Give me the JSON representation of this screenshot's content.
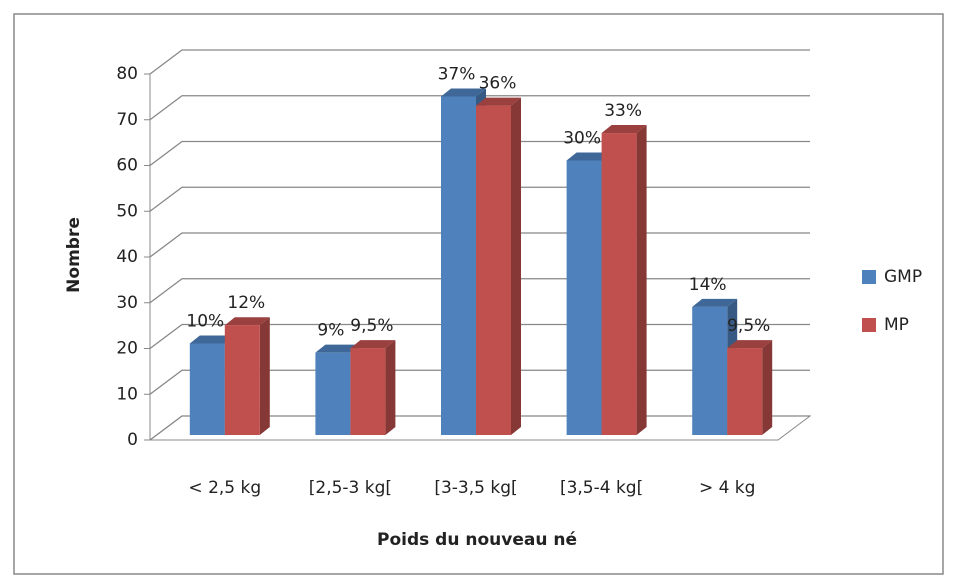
{
  "chart_data": {
    "type": "bar3d",
    "y_label": "Nombre",
    "x_label": "Poids du nouveau né",
    "categories": [
      "< 2,5 kg",
      "[2,5-3 kg[",
      "[3-3,5 kg[",
      "[3,5-4 kg[",
      "> 4 kg"
    ],
    "series": [
      {
        "name": "GMP",
        "color": "#4f81bd",
        "values": [
          20,
          18,
          74,
          60,
          28
        ],
        "value_labels": [
          "10%",
          "9%",
          "37%",
          "30%",
          "14%"
        ]
      },
      {
        "name": "MP",
        "color": "#c0504d",
        "values": [
          24,
          19,
          72,
          66,
          19
        ],
        "value_labels": [
          "12%",
          "9,5%",
          "36%",
          "33%",
          "9,5%"
        ]
      }
    ],
    "ylim": [
      0,
      80
    ],
    "yticks": [
      0,
      10,
      20,
      30,
      40,
      50,
      60,
      70,
      80
    ],
    "grid": true,
    "legend": "right"
  }
}
